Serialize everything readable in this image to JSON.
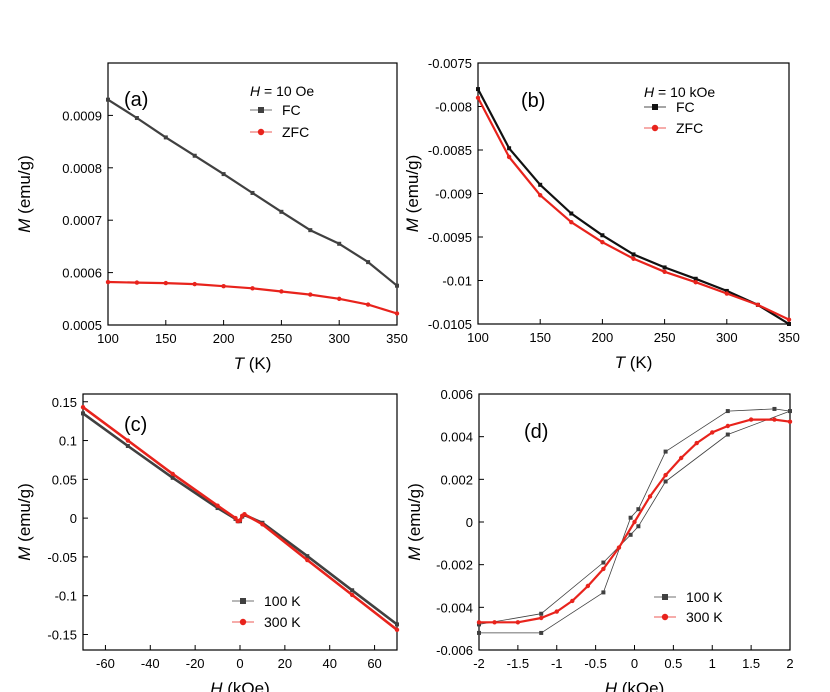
{
  "colors": {
    "fc": "#404040",
    "zfc": "#e8231c"
  },
  "chart_data": [
    {
      "panel": "(a)",
      "type": "scatter",
      "xlabel": "T (K)",
      "ylabel": "M (emu/g)",
      "xlim": [
        100,
        350
      ],
      "ylim": [
        0.0005,
        0.001
      ],
      "xticks": [
        100,
        150,
        200,
        250,
        300,
        350
      ],
      "xtick_labels": [
        "100",
        "150",
        "200",
        "250",
        "300",
        "350"
      ],
      "yticks": [
        0.0005,
        0.0006,
        0.0007,
        0.0008,
        0.0009
      ],
      "ytick_labels": [
        "0.0005",
        "0.0006",
        "0.0007",
        "0.0008",
        "0.0009"
      ],
      "legend_title": "H = 10 Oe",
      "legend_position": "top-right",
      "series": [
        {
          "name": "FC",
          "marker": "square",
          "color": "#404040",
          "x": [
            100,
            125,
            150,
            175,
            200,
            225,
            250,
            275,
            300,
            325,
            350
          ],
          "y": [
            0.00093,
            0.000895,
            0.000858,
            0.000823,
            0.000788,
            0.000752,
            0.000716,
            0.000681,
            0.000655,
            0.00062,
            0.000575
          ]
        },
        {
          "name": "ZFC",
          "marker": "circle",
          "color": "#e8231c",
          "x": [
            100,
            125,
            150,
            175,
            200,
            225,
            250,
            275,
            300,
            325,
            350
          ],
          "y": [
            0.000582,
            0.000581,
            0.00058,
            0.000578,
            0.000574,
            0.00057,
            0.000564,
            0.000558,
            0.00055,
            0.000539,
            0.000522
          ]
        }
      ]
    },
    {
      "panel": "(b)",
      "type": "scatter",
      "xlabel": "T (K)",
      "ylabel": "M (emu/g)",
      "xlim": [
        100,
        350
      ],
      "ylim": [
        -0.0105,
        -0.0075
      ],
      "xticks": [
        100,
        150,
        200,
        250,
        300,
        350
      ],
      "xtick_labels": [
        "100",
        "150",
        "200",
        "250",
        "300",
        "350"
      ],
      "yticks": [
        -0.0105,
        -0.01,
        -0.0095,
        -0.009,
        -0.0085,
        -0.008,
        -0.0075
      ],
      "ytick_labels": [
        "-0.0105",
        "-0.01",
        "-0.0095",
        "-0.009",
        "-0.0085",
        "-0.008",
        "-0.0075"
      ],
      "legend_title": "H = 10 kOe",
      "legend_position": "top-right",
      "series": [
        {
          "name": "FC",
          "marker": "square",
          "color": "#111111",
          "x": [
            100,
            125,
            150,
            175,
            200,
            225,
            250,
            275,
            300,
            325,
            350
          ],
          "y": [
            -0.0078,
            -0.00848,
            -0.0089,
            -0.00923,
            -0.00948,
            -0.0097,
            -0.00985,
            -0.00998,
            -0.01012,
            -0.01028,
            -0.0105
          ]
        },
        {
          "name": "ZFC",
          "marker": "circle",
          "color": "#e8231c",
          "x": [
            100,
            125,
            150,
            175,
            200,
            225,
            250,
            275,
            300,
            325,
            350
          ],
          "y": [
            -0.0079,
            -0.00858,
            -0.00902,
            -0.00933,
            -0.00956,
            -0.00975,
            -0.0099,
            -0.01002,
            -0.01015,
            -0.01028,
            -0.01045
          ]
        }
      ]
    },
    {
      "panel": "(c)",
      "type": "line",
      "xlabel": "H (kOe)",
      "ylabel": "M (emu/g)",
      "xlim": [
        -70,
        70
      ],
      "ylim": [
        -0.17,
        0.16
      ],
      "xticks": [
        -60,
        -40,
        -20,
        0,
        20,
        40,
        60
      ],
      "xtick_labels": [
        "-60",
        "-40",
        "-20",
        "0",
        "20",
        "40",
        "60"
      ],
      "yticks": [
        -0.15,
        -0.1,
        -0.05,
        0,
        0.05,
        0.1,
        0.15
      ],
      "ytick_labels": [
        "-0.15",
        "-0.1",
        "-0.05",
        "0",
        "0.05",
        "0.1",
        "0.15"
      ],
      "legend_position": "bottom-right",
      "series": [
        {
          "name": "100 K",
          "marker": "square",
          "color": "#404040",
          "x": [
            -70,
            -50,
            -30,
            -10,
            -2,
            -1,
            0,
            1,
            2,
            10,
            30,
            50,
            70
          ],
          "y": [
            0.135,
            0.093,
            0.052,
            0.013,
            -0.001,
            -0.004,
            -0.004,
            0.002,
            0.004,
            -0.006,
            -0.049,
            -0.093,
            -0.137
          ]
        },
        {
          "name": "300 K",
          "marker": "circle",
          "color": "#e8231c",
          "x": [
            -70,
            -50,
            -30,
            -10,
            -2,
            -1,
            0,
            1,
            2,
            10,
            30,
            50,
            70
          ],
          "y": [
            0.143,
            0.1,
            0.057,
            0.016,
            0.0,
            -0.004,
            -0.003,
            0.003,
            0.005,
            -0.008,
            -0.054,
            -0.099,
            -0.144
          ]
        }
      ]
    },
    {
      "panel": "(d)",
      "type": "scatter",
      "xlabel": "H (kOe)",
      "ylabel": "M (emu/g)",
      "xlim": [
        -2,
        2
      ],
      "ylim": [
        -0.006,
        0.006
      ],
      "xticks": [
        -2,
        -1.5,
        -1,
        -0.5,
        0,
        0.5,
        1,
        1.5,
        2
      ],
      "xtick_labels": [
        "-2",
        "-1.5",
        "-1",
        "-0.5",
        "0",
        "0.5",
        "1",
        "1.5",
        "2"
      ],
      "yticks": [
        -0.006,
        -0.004,
        -0.002,
        0,
        0.002,
        0.004,
        0.006
      ],
      "ytick_labels": [
        "-0.006",
        "-0.004",
        "-0.002",
        "0",
        "0.002",
        "0.004",
        "0.006"
      ],
      "legend_position": "bottom-right",
      "series": [
        {
          "name": "100 K",
          "marker": "square",
          "color": "#404040",
          "x": [
            -2,
            -1.2,
            -0.4,
            -0.05,
            0.05,
            0.4,
            1.2,
            1.8,
            2,
            1.2,
            0.4,
            0.05,
            -0.05,
            -0.4,
            -1.2,
            -2
          ],
          "y": [
            -0.0052,
            -0.0052,
            -0.0033,
            0.0002,
            0.0006,
            0.0033,
            0.0052,
            0.0053,
            0.0052,
            0.0041,
            0.0019,
            -0.0002,
            -0.0006,
            -0.0019,
            -0.0043,
            -0.0048
          ]
        },
        {
          "name": "300 K",
          "marker": "circle",
          "color": "#e8231c",
          "x": [
            -2,
            -1.8,
            -1.5,
            -1.2,
            -1.0,
            -0.8,
            -0.6,
            -0.4,
            -0.2,
            0.0,
            0.2,
            0.4,
            0.6,
            0.8,
            1.0,
            1.2,
            1.5,
            1.8,
            2.0
          ],
          "y": [
            -0.0047,
            -0.0047,
            -0.0047,
            -0.0045,
            -0.0042,
            -0.0037,
            -0.003,
            -0.0022,
            -0.0012,
            0.0,
            0.0012,
            0.0022,
            0.003,
            0.0037,
            0.0042,
            0.0045,
            0.0048,
            0.0048,
            0.0047
          ]
        }
      ]
    }
  ]
}
